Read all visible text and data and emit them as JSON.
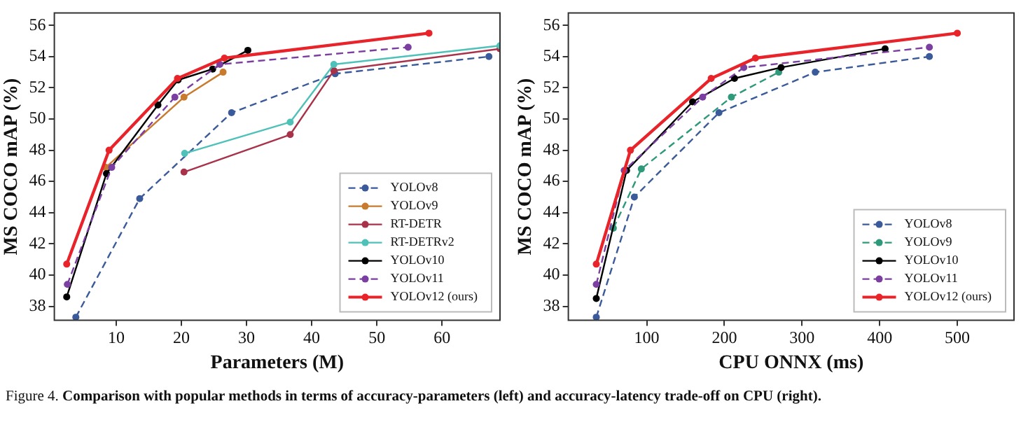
{
  "chart_data": [
    {
      "type": "line",
      "xlabel": "Parameters (M)",
      "ylabel": "MS COCO mAP (%)",
      "xlim": [
        0.5,
        68.9
      ],
      "ylim": [
        37.1,
        56.8
      ],
      "xticks": [
        10,
        20,
        30,
        40,
        50,
        60
      ],
      "yticks": [
        38,
        40,
        42,
        44,
        46,
        48,
        50,
        52,
        54,
        56
      ],
      "grid": false,
      "legend": "bottom right",
      "marker": "circle",
      "series": [
        {
          "name": "YOLOv8",
          "color": "#3a5a9a",
          "line_style": "dashed",
          "x": [
            3.8,
            13.6,
            27.7,
            43.6,
            67.2
          ],
          "values": [
            37.3,
            44.9,
            50.4,
            52.9,
            54.0
          ]
        },
        {
          "name": "YOLOv9",
          "color": "#c87a2e",
          "line_style": "solid",
          "x": [
            8.4,
            20.4,
            26.4
          ],
          "values": [
            46.9,
            51.4,
            53.0
          ]
        },
        {
          "name": "RT-DETR",
          "color": "#a8324a",
          "line_style": "solid",
          "x": [
            20.4,
            36.7,
            43.4,
            68.9
          ],
          "values": [
            46.6,
            49.0,
            53.1,
            54.5
          ]
        },
        {
          "name": "RT-DETRv2",
          "color": "#4ec2b8",
          "line_style": "solid",
          "x": [
            20.5,
            36.7,
            43.4,
            68.9
          ],
          "values": [
            47.8,
            49.8,
            53.5,
            54.7
          ]
        },
        {
          "name": "YOLOv10",
          "color": "#000000",
          "line_style": "solid",
          "x": [
            2.4,
            8.5,
            16.4,
            19.5,
            24.8,
            30.2
          ],
          "values": [
            38.6,
            46.5,
            50.9,
            52.5,
            53.2,
            54.4
          ]
        },
        {
          "name": "YOLOv11",
          "color": "#7a3fa0",
          "line_style": "dashed",
          "x": [
            2.5,
            9.3,
            19.0,
            25.9,
            54.8
          ],
          "values": [
            39.4,
            46.9,
            51.4,
            53.5,
            54.6
          ]
        },
        {
          "name": "YOLOv12 (ours)",
          "color": "#e8242a",
          "line_style": "solid",
          "x": [
            2.4,
            8.9,
            19.4,
            26.6,
            58.0
          ],
          "values": [
            40.7,
            48.0,
            52.6,
            53.9,
            55.5
          ]
        }
      ],
      "annotations": [
        "Figure 4.",
        "Comparison with popular methods in terms of accuracy-parameters (left) and accuracy-latency trade-off on CPU (right)."
      ]
    },
    {
      "type": "line",
      "xlabel": "CPU ONNX (ms)",
      "ylabel": "MS COCO mAP (%)",
      "xlim": [
        -1,
        573
      ],
      "ylim": [
        37.1,
        56.8
      ],
      "xticks": [
        100,
        200,
        300,
        400,
        500
      ],
      "yticks": [
        38,
        40,
        42,
        44,
        46,
        48,
        50,
        52,
        54,
        56
      ],
      "grid": false,
      "legend": "bottom right",
      "marker": "circle",
      "series": [
        {
          "name": "YOLOv8",
          "color": "#3a5a9a",
          "line_style": "dashed",
          "x": [
            35,
            84,
            193,
            317,
            464
          ],
          "values": [
            37.3,
            45.0,
            50.4,
            53.0,
            54.0
          ]
        },
        {
          "name": "YOLOv9",
          "color": "#2e9a7a",
          "line_style": "dashed",
          "x": [
            57,
            93,
            209,
            270
          ],
          "values": [
            43.0,
            46.8,
            51.4,
            53.0
          ]
        },
        {
          "name": "YOLOv10",
          "color": "#000000",
          "line_style": "solid",
          "x": [
            35,
            74,
            159,
            213,
            273,
            407
          ],
          "values": [
            38.5,
            46.7,
            51.1,
            52.6,
            53.3,
            54.5
          ]
        },
        {
          "name": "YOLOv11",
          "color": "#7a3fa0",
          "line_style": "dashed",
          "x": [
            35,
            71,
            172,
            225,
            464
          ],
          "values": [
            39.4,
            46.7,
            51.4,
            53.3,
            54.6
          ]
        },
        {
          "name": "YOLOv12 (ours)",
          "color": "#e8242a",
          "line_style": "solid",
          "x": [
            35,
            79,
            183,
            240,
            500
          ],
          "values": [
            40.7,
            48.0,
            52.6,
            53.9,
            55.5
          ]
        }
      ]
    }
  ]
}
